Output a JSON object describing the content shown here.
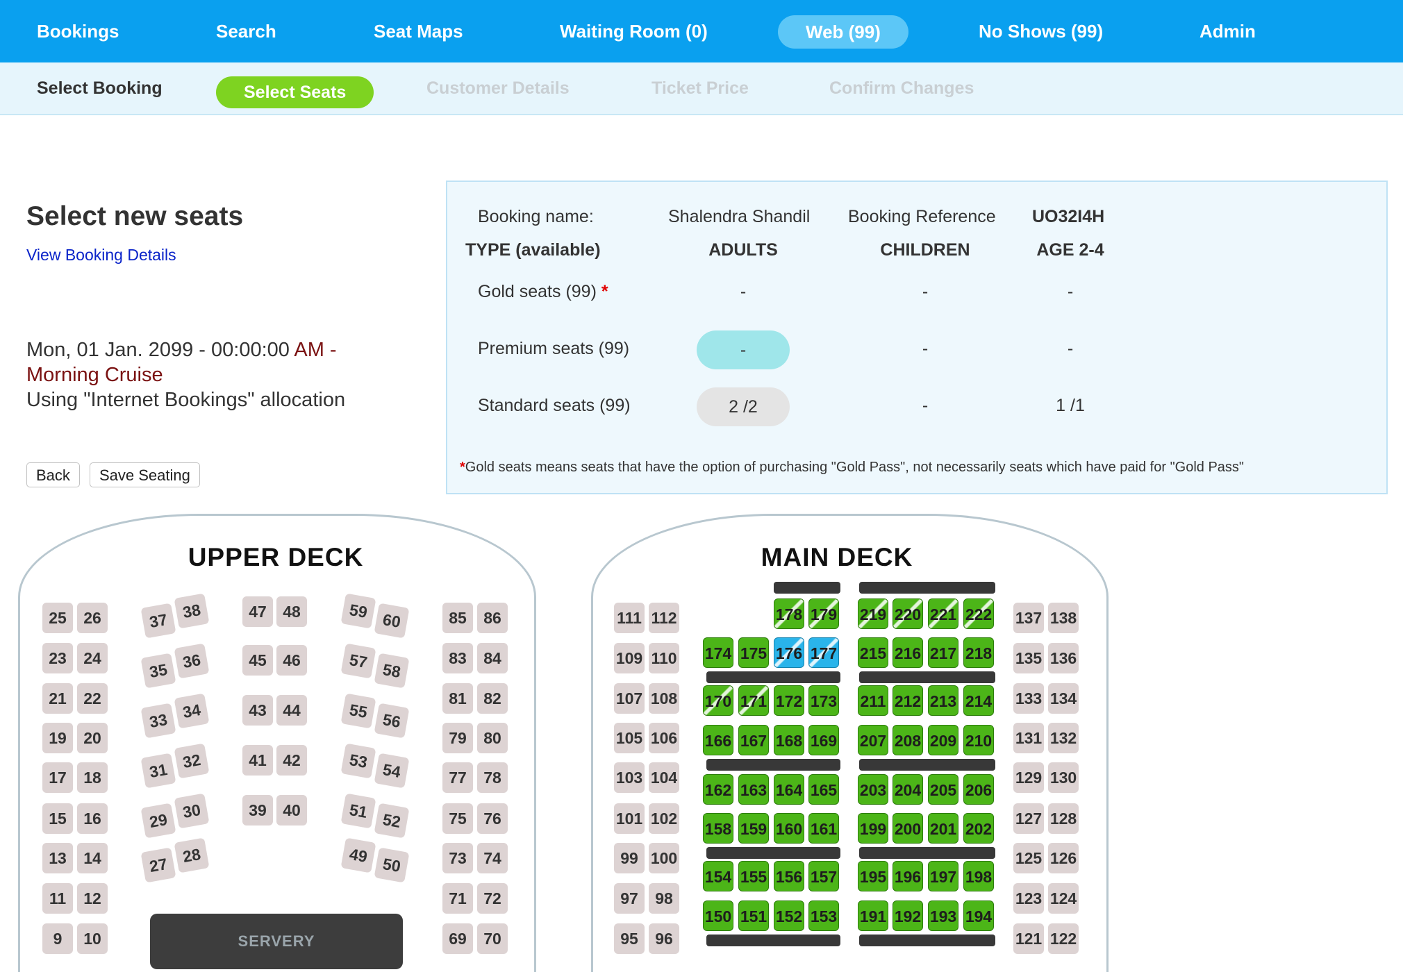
{
  "topnav": {
    "items": [
      {
        "label": "Bookings",
        "active": false
      },
      {
        "label": "Search",
        "active": false
      },
      {
        "label": "Seat Maps",
        "active": false
      },
      {
        "label": "Waiting Room (0)",
        "active": false
      },
      {
        "label": "Web (99)",
        "active": true
      },
      {
        "label": "No Shows (99)",
        "active": false
      },
      {
        "label": "Admin",
        "active": false
      }
    ]
  },
  "steps": [
    {
      "label": "Select Booking",
      "state": "done"
    },
    {
      "label": "Select Seats",
      "state": "current"
    },
    {
      "label": "Customer Details",
      "state": "pending"
    },
    {
      "label": "Ticket Price",
      "state": "pending"
    },
    {
      "label": "Confirm Changes",
      "state": "pending"
    }
  ],
  "page": {
    "title": "Select new seats",
    "view_details_link": "View Booking Details",
    "date_prefix": "Mon, 01 Jan. 2099 - 00:00:00",
    "am_label": "AM -",
    "cruise_name": "Morning Cruise",
    "allocation": "Using \"Internet Bookings\" allocation",
    "back_button": "Back",
    "save_button": "Save Seating"
  },
  "booking": {
    "name_label": "Booking name:",
    "name": "Shalendra Shandil",
    "reference_label": "Booking Reference",
    "reference": "UO32I4H",
    "columns": [
      "TYPE (available)",
      "ADULTS",
      "CHILDREN",
      "AGE 2-4"
    ],
    "rows": [
      {
        "type": "Gold seats (99)",
        "required": "*",
        "adults": "-",
        "children": "-",
        "age24": "-"
      },
      {
        "type": "Premium seats (99)",
        "required": "",
        "adults": "-",
        "children": "-",
        "age24": "-"
      },
      {
        "type": "Standard seats (99)",
        "required": "",
        "adults": "2 /2",
        "children": "-",
        "age24": "1 /1"
      }
    ],
    "note_star": "*",
    "note": "Gold seats means seats that have the option of purchasing \"Gold Pass\", not necessarily seats which have paid for \"Gold Pass\""
  },
  "upper_deck": {
    "title": "UPPER DECK",
    "servery": "SERVERY",
    "left_pairs": [
      [
        "25",
        "26"
      ],
      [
        "23",
        "24"
      ],
      [
        "21",
        "22"
      ],
      [
        "19",
        "20"
      ],
      [
        "17",
        "18"
      ],
      [
        "15",
        "16"
      ],
      [
        "13",
        "14"
      ],
      [
        "11",
        "12"
      ],
      [
        "9",
        "10"
      ]
    ],
    "angled_left": [
      [
        "37",
        "38"
      ],
      [
        "35",
        "36"
      ],
      [
        "33",
        "34"
      ],
      [
        "31",
        "32"
      ],
      [
        "29",
        "30"
      ],
      [
        "27",
        "28"
      ]
    ],
    "center_pairs": [
      [
        "47",
        "48"
      ],
      [
        "45",
        "46"
      ],
      [
        "43",
        "44"
      ],
      [
        "41",
        "42"
      ],
      [
        "39",
        "40"
      ]
    ],
    "angled_right": [
      [
        "59",
        "60"
      ],
      [
        "57",
        "58"
      ],
      [
        "55",
        "56"
      ],
      [
        "53",
        "54"
      ],
      [
        "51",
        "52"
      ],
      [
        "49",
        "50"
      ]
    ],
    "right_pairs": [
      [
        "85",
        "86"
      ],
      [
        "83",
        "84"
      ],
      [
        "81",
        "82"
      ],
      [
        "79",
        "80"
      ],
      [
        "77",
        "78"
      ],
      [
        "75",
        "76"
      ],
      [
        "73",
        "74"
      ],
      [
        "71",
        "72"
      ],
      [
        "69",
        "70"
      ]
    ]
  },
  "main_deck": {
    "title": "MAIN DECK",
    "left_pairs": [
      [
        "111",
        "112"
      ],
      [
        "109",
        "110"
      ],
      [
        "107",
        "108"
      ],
      [
        "105",
        "106"
      ],
      [
        "103",
        "104"
      ],
      [
        "101",
        "102"
      ],
      [
        "99",
        "100"
      ],
      [
        "97",
        "98"
      ],
      [
        "95",
        "96"
      ]
    ],
    "right_pairs": [
      [
        "137",
        "138"
      ],
      [
        "135",
        "136"
      ],
      [
        "133",
        "134"
      ],
      [
        "131",
        "132"
      ],
      [
        "129",
        "130"
      ],
      [
        "127",
        "128"
      ],
      [
        "125",
        "126"
      ],
      [
        "123",
        "124"
      ],
      [
        "121",
        "122"
      ]
    ],
    "center_left": [
      [
        "",
        "",
        "178",
        "179"
      ],
      [
        "174",
        "175",
        "176",
        "177"
      ],
      [
        "170",
        "171",
        "172",
        "173"
      ],
      [
        "166",
        "167",
        "168",
        "169"
      ],
      [
        "162",
        "163",
        "164",
        "165"
      ],
      [
        "158",
        "159",
        "160",
        "161"
      ],
      [
        "154",
        "155",
        "156",
        "157"
      ],
      [
        "150",
        "151",
        "152",
        "153"
      ]
    ],
    "center_right": [
      [
        "219",
        "220",
        "221",
        "222"
      ],
      [
        "215",
        "216",
        "217",
        "218"
      ],
      [
        "211",
        "212",
        "213",
        "214"
      ],
      [
        "207",
        "208",
        "209",
        "210"
      ],
      [
        "203",
        "204",
        "205",
        "206"
      ],
      [
        "199",
        "200",
        "201",
        "202"
      ],
      [
        "195",
        "196",
        "197",
        "198"
      ],
      [
        "191",
        "192",
        "193",
        "194"
      ]
    ],
    "selected_seats": [
      "176",
      "177"
    ],
    "striped_seats": [
      "178",
      "179",
      "219",
      "220",
      "221",
      "222",
      "176",
      "177",
      "170",
      "171"
    ]
  },
  "colors": {
    "nav": "#0aa0ef",
    "step_current": "#7ed321",
    "available_seat": "#4cb518",
    "selected_seat": "#2ab4ea",
    "unavailable_seat": "#ddd3d3"
  }
}
